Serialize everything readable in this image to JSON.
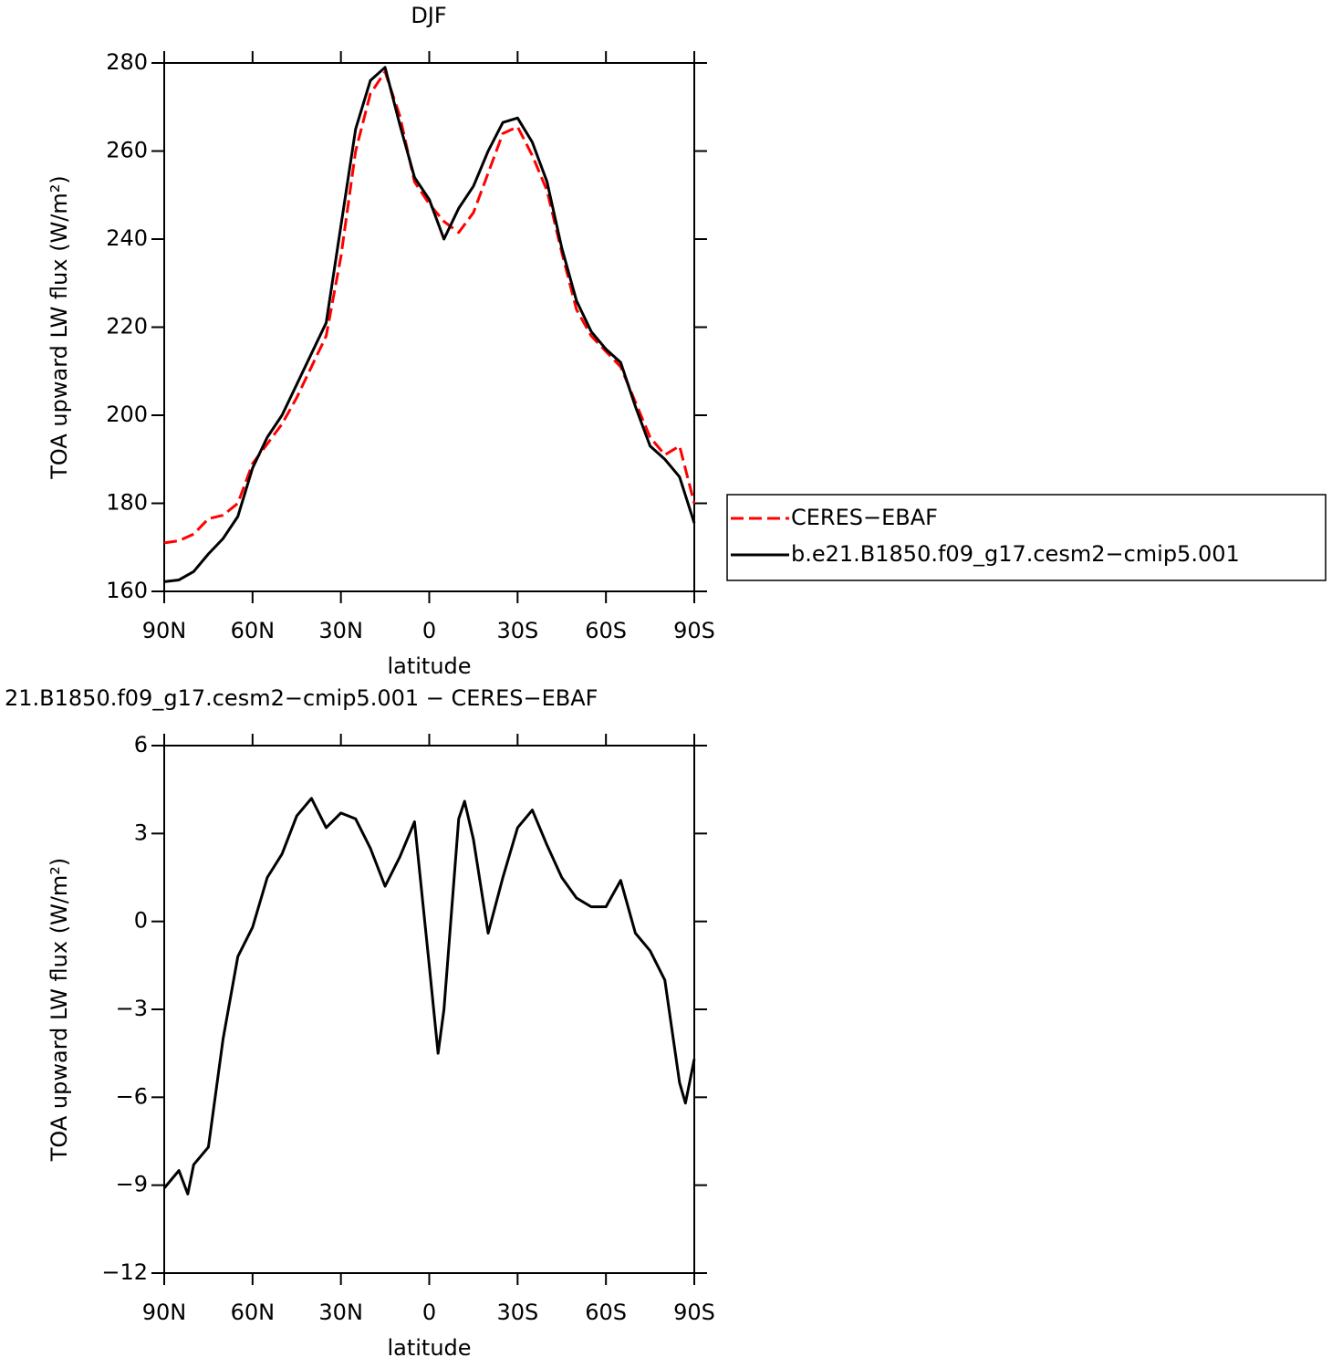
{
  "chart_data": [
    {
      "type": "line",
      "title": "DJF",
      "x_label": "latitude",
      "y_label": "TOA upward LW flux (W/m²)",
      "x": [
        90,
        85,
        80,
        75,
        70,
        65,
        60,
        55,
        50,
        45,
        40,
        35,
        30,
        25,
        20,
        15,
        10,
        5,
        0,
        -5,
        -10,
        -15,
        -20,
        -25,
        -30,
        -35,
        -40,
        -45,
        -50,
        -55,
        -60,
        -65,
        -70,
        -75,
        -80,
        -85,
        -90
      ],
      "series": [
        {
          "name": "CERES−EBAF",
          "color": "#ff0000",
          "line_style": "dashed",
          "values": [
            171,
            171.5,
            173,
            176.5,
            177.3,
            180,
            189,
            193.5,
            198,
            204,
            211,
            218,
            236,
            260,
            273,
            278,
            268,
            253,
            248,
            244,
            241.5,
            246,
            255,
            264,
            265.5,
            259,
            251,
            237,
            224,
            218,
            214.5,
            211,
            203,
            195,
            191,
            193,
            180
          ]
        },
        {
          "name": "b.e21.B1850.f09_g17.cesm2−cmip5.001",
          "color": "#000000",
          "line_style": "solid",
          "values": [
            162.2,
            162.6,
            164.5,
            168.5,
            172,
            177,
            188,
            195,
            200,
            207,
            214,
            221,
            243,
            265,
            276,
            279,
            266,
            254,
            249,
            240,
            247,
            252,
            260,
            266.5,
            267.5,
            262,
            253,
            238,
            226,
            219,
            215,
            212,
            202,
            193,
            190,
            186,
            175.5
          ]
        }
      ],
      "xlim": [
        90,
        -90
      ],
      "xticks": [
        {
          "value": 90,
          "label": "90N"
        },
        {
          "value": 60,
          "label": "60N"
        },
        {
          "value": 30,
          "label": "30N"
        },
        0,
        {
          "value": -30,
          "label": "30S"
        },
        {
          "value": -60,
          "label": "60S"
        },
        {
          "value": -90,
          "label": "90S"
        }
      ],
      "ylim": [
        160,
        280
      ],
      "yticks": [
        160,
        180,
        200,
        220,
        240,
        260,
        280
      ],
      "legend": "right"
    },
    {
      "type": "line",
      "title": "21.B1850.f09_g17.cesm2−cmip5.001 − CERES−EBAF",
      "x_label": "latitude",
      "y_label": "TOA upward LW flux (W/m²)",
      "x": [
        90,
        85,
        82,
        80,
        75,
        70,
        65,
        60,
        55,
        50,
        45,
        40,
        35,
        30,
        25,
        20,
        15,
        10,
        5,
        0,
        -3,
        -5,
        -10,
        -12,
        -15,
        -20,
        -25,
        -30,
        -35,
        -40,
        -45,
        -50,
        -55,
        -60,
        -65,
        -70,
        -75,
        -80,
        -85,
        -87,
        -90
      ],
      "values": [
        -9.1,
        -8.5,
        -9.3,
        -8.3,
        -7.7,
        -4,
        -1.2,
        -0.2,
        1.5,
        2.3,
        3.6,
        4.2,
        3.2,
        3.7,
        3.5,
        2.5,
        1.2,
        2.2,
        3.4,
        -1.5,
        -4.5,
        -3,
        3.5,
        4.1,
        2.8,
        -0.4,
        1.5,
        3.2,
        3.8,
        2.6,
        1.5,
        0.8,
        0.5,
        0.5,
        1.4,
        -0.4,
        -1.0,
        -2.0,
        -5.5,
        -6.2,
        -4.7
      ],
      "color": "#000000",
      "xlim": [
        90,
        -90
      ],
      "xticks": [
        {
          "value": 90,
          "label": "90N"
        },
        {
          "value": 60,
          "label": "60N"
        },
        {
          "value": 30,
          "label": "30N"
        },
        0,
        {
          "value": -30,
          "label": "30S"
        },
        {
          "value": -60,
          "label": "60S"
        },
        {
          "value": -90,
          "label": "90S"
        }
      ],
      "ylim": [
        -12,
        6
      ],
      "yticks": [
        {
          "value": -12,
          "label": "−12"
        },
        {
          "value": -9,
          "label": "−9"
        },
        {
          "value": -6,
          "label": "−6"
        },
        {
          "value": -3,
          "label": "−3"
        },
        0,
        3,
        6
      ]
    }
  ]
}
